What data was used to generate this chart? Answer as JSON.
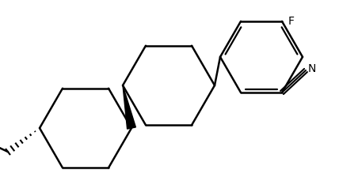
{
  "background_color": "#ffffff",
  "line_color": "#000000",
  "lw": 1.8,
  "fig_width": 4.28,
  "fig_height": 2.34,
  "dpi": 100,
  "xlim": [
    0,
    428
  ],
  "ylim": [
    0,
    234
  ]
}
